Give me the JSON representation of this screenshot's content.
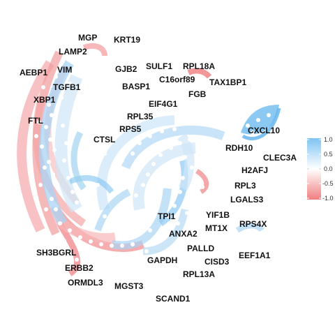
{
  "colors": {
    "positive": "#7ec3f2",
    "positive_light": "#cfe6f8",
    "negative": "#f07e80",
    "negative_light": "#f8c9ca",
    "node": "#ffffff"
  },
  "legend": {
    "tick_labels": [
      "1.0",
      "0.5",
      "0.0",
      "-0.5",
      "-1.0"
    ],
    "range": [
      -1.0,
      1.0
    ]
  },
  "genes": [
    "MGP",
    "KRT19",
    "LAMP2",
    "AEBP1",
    "VIM",
    "GJB2",
    "SULF1",
    "RPL18A",
    "C16orf89",
    "TGFB1",
    "BASP1",
    "TAX1BP1",
    "XBP1",
    "FGB",
    "EIF4G1",
    "FTL",
    "RPL35",
    "RPS5",
    "CXCL10",
    "CTSL",
    "RDH10",
    "CLEC3A",
    "H2AFJ",
    "RPL3",
    "LGALS3",
    "TPI1",
    "YIF1B",
    "RPS4X",
    "MT1X",
    "ANXA2",
    "PALLD",
    "EEF1A1",
    "SH3BGRL",
    "GAPDH",
    "CISD3",
    "ERBB2",
    "RPL13A",
    "ORMDL3",
    "MGST3",
    "SCAND1"
  ]
}
